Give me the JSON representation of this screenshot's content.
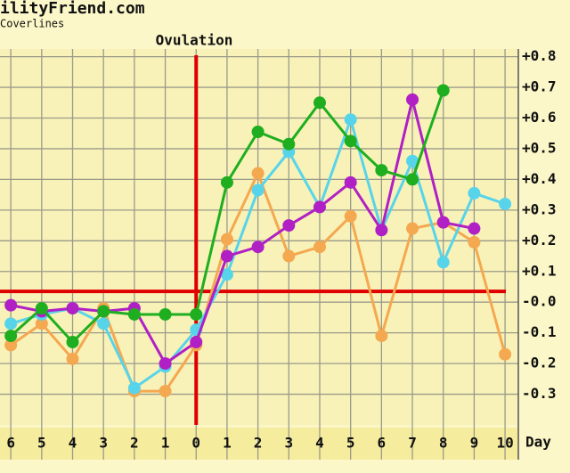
{
  "chart_data": {
    "type": "line",
    "title": "ilityFriend.com",
    "subtitle": "Coverlines",
    "annotation": "Ovulation",
    "x_label": "Day",
    "x": [
      -6,
      -5,
      -4,
      -3,
      -2,
      -1,
      0,
      1,
      2,
      3,
      4,
      5,
      6,
      7,
      8,
      9,
      10
    ],
    "xlim": [
      -6.35,
      10.43
    ],
    "xticks": [
      {
        "value": -6,
        "label": "6"
      },
      {
        "value": -5,
        "label": "5"
      },
      {
        "value": -4,
        "label": "4"
      },
      {
        "value": -3,
        "label": "3"
      },
      {
        "value": -2,
        "label": "2"
      },
      {
        "value": -1,
        "label": "1"
      },
      0,
      1,
      2,
      3,
      4,
      5,
      6,
      7,
      8,
      9,
      10
    ],
    "ylim": [
      -0.4,
      0.825
    ],
    "yticks": [
      {
        "value": 0.8,
        "label": "+0.8"
      },
      {
        "value": 0.7,
        "label": "+0.7"
      },
      {
        "value": 0.6,
        "label": "+0.6"
      },
      {
        "value": 0.5,
        "label": "+0.5"
      },
      {
        "value": 0.4,
        "label": "+0.4"
      },
      {
        "value": 0.3,
        "label": "+0.3"
      },
      {
        "value": 0.2,
        "label": "+0.2"
      },
      {
        "value": 0.1,
        "label": "+0.1"
      },
      {
        "value": 0,
        "label": "-0.0"
      },
      {
        "value": -0.1,
        "label": "-0.1"
      },
      {
        "value": -0.2,
        "label": "-0.2"
      },
      {
        "value": -0.3,
        "label": "-0.3"
      }
    ],
    "grid": true,
    "coverline": 0.035,
    "ovulation_day": 0,
    "reference_color": "#e00000",
    "series": [
      {
        "color": "#f4a850",
        "values": [
          -0.14,
          -0.07,
          -0.185,
          -0.02,
          -0.29,
          -0.29,
          -0.14,
          0.205,
          0.42,
          0.15,
          0.18,
          0.28,
          -0.11,
          0.24,
          0.26,
          0.195,
          -0.17
        ]
      },
      {
        "color": "#58d4ea",
        "values": [
          -0.07,
          -0.04,
          -0.02,
          -0.07,
          -0.28,
          -0.21,
          -0.09,
          0.09,
          0.365,
          0.49,
          0.31,
          0.595,
          0.235,
          0.46,
          0.13,
          0.355,
          0.32
        ]
      },
      {
        "color": "#b020c4",
        "values": [
          -0.01,
          -0.03,
          -0.02,
          -0.03,
          -0.02,
          -0.2,
          -0.13,
          0.15,
          0.18,
          0.25,
          0.31,
          0.39,
          0.235,
          0.66,
          0.26,
          0.24,
          null
        ]
      },
      {
        "color": "#1fae1f",
        "values": [
          -0.11,
          -0.02,
          -0.13,
          -0.03,
          -0.04,
          -0.04,
          -0.04,
          0.39,
          0.555,
          0.515,
          0.65,
          0.525,
          0.43,
          0.4,
          0.69,
          null,
          null
        ]
      }
    ]
  }
}
